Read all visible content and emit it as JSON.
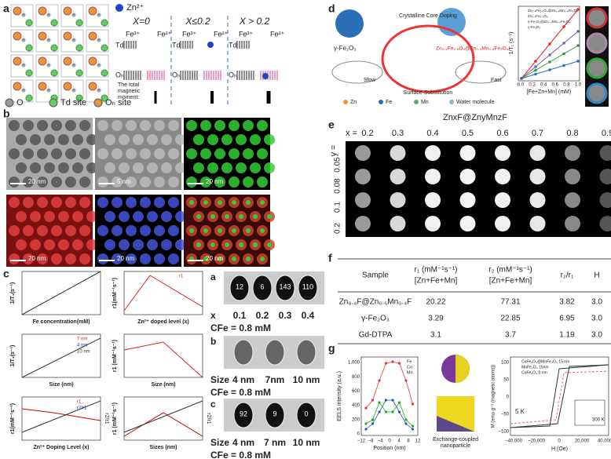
{
  "a": {
    "label": "a",
    "ion": "Zn²⁺",
    "cases": [
      "X=0",
      "X≤0.2",
      "X > 0.2"
    ],
    "fe3": "Fe³⁺",
    "fe2": "Fe²⁺",
    "td": "Td",
    "oh": "Oₕ",
    "legend": [
      "O",
      "Td site",
      "Oₕ site"
    ],
    "moment": [
      "The total",
      "magnetic",
      "moment:"
    ]
  },
  "b": {
    "label": "b",
    "scales": [
      "20 nm",
      "5 nm",
      "20 nm",
      "20 nm",
      "20 nm",
      "20 nm"
    ]
  },
  "c": {
    "label": "c",
    "plots": [
      {
        "x": "Fe concentration(mM)",
        "y": "1/T₁(s⁻¹)"
      },
      {
        "x": "Zn²⁺ doped level (x)",
        "y": "r1(mM⁻¹s⁻¹)",
        "legend": [
          "r1"
        ]
      },
      {
        "x": "Size (nm)",
        "y": "1/T₁(s⁻¹)",
        "legend": [
          "7 nm",
          "4 nm",
          "10 nm"
        ]
      },
      {
        "x": "Size (nm)",
        "y": "r1 (mM⁻¹s⁻¹)"
      },
      {
        "x": "Zn²⁺ Doping Level (x)",
        "y": "r1(mM⁻¹s⁻¹)",
        "y2": "r2/r1",
        "legend": [
          "r1",
          "r2/r1"
        ]
      },
      {
        "x": "Sizes (nm)",
        "y": "r1 (mM⁻¹s⁻¹)",
        "y2": "r2/r1"
      }
    ],
    "sub": [
      {
        "label": "a",
        "values": [
          12,
          6,
          143,
          110
        ],
        "axis": "x",
        "ticks": [
          "0.1",
          "0.2",
          "0.3",
          "0.4"
        ],
        "conc": "CFe = 0.8 mM"
      },
      {
        "label": "b",
        "values": [],
        "axis": "Size",
        "ticks": [
          "4 nm",
          "7nm",
          "10 nm"
        ],
        "conc": "CFe = 0.8 mM"
      },
      {
        "label": "c",
        "values": [
          92,
          9,
          0
        ],
        "axis": "Size",
        "ticks": [
          "4 nm",
          "7 nm",
          "10 nm"
        ],
        "conc": "CFe = 0.8 mM"
      }
    ]
  },
  "d": {
    "label": "d",
    "core": "γ-Fe₂O₃",
    "doping": "Crystalline Core Doping",
    "surface": "Surface Substitution",
    "slow": "Slow",
    "fast": "Fast",
    "product": "Zn₀.₄Fe₂.₆O₄@Zn₀.₄Mn₀.₆Fe₂O₄",
    "legend": [
      "Zn",
      "Fe",
      "Mn",
      "Water molecule"
    ],
    "plot": {
      "x": "[Fe+Zn+Mn] (mM)",
      "y": "1/T₁ (s⁻¹)",
      "series": [
        "Zn₀.₄Fe₂.₆O₄@Zn₀.₄Mn₀.₆Fe₂O₄",
        "Zn₀.₄Fe₂.₆O₄",
        "γ-Fe₂O₃@Zn₀.₄Mn₀.₆Fe₂O₄",
        "γ-Fe₂O₃"
      ],
      "xticks": [
        "0.0",
        "0.2",
        "0.4",
        "0.6",
        "0.8",
        "1.0"
      ]
    }
  },
  "e": {
    "label": "e",
    "title": "ZnxF@ZnyMnzF",
    "xlabel": "x =",
    "cols": [
      0.2,
      0.3,
      0.4,
      0.5,
      0.6,
      0.7,
      0.8,
      0.9
    ],
    "ylabel": "y =",
    "rows": [
      0.05,
      0.08,
      0.1,
      0.2
    ]
  },
  "f": {
    "label": "f",
    "header": [
      "Sample",
      "r₁ (mM⁻¹s⁻¹)",
      "r₂ (mM⁻¹s⁻¹)",
      "r₂/r₁",
      "H"
    ],
    "subheader": [
      "[Zn+Fe+Mn]",
      "[Zn+Fe+Mn]"
    ],
    "rows": [
      [
        "Zn₀.₄F@Zn₀.₆Mn₀.₄F",
        20.22,
        77.31,
        3.82,
        "3.0"
      ],
      [
        "γ-Fe₂O₃",
        3.29,
        22.85,
        6.95,
        "3.0"
      ],
      [
        "Gd-DTPA",
        3.1,
        3.7,
        1.19,
        "3.0"
      ]
    ]
  },
  "g": {
    "label": "g",
    "eels": {
      "y": "EELS intensity (a.u.)",
      "x": "Position (nm)",
      "legend": [
        "Fe",
        "Co",
        "Mn"
      ],
      "yticks": [
        "0",
        "200",
        "400",
        "600",
        "800",
        "1,000"
      ],
      "xticks": [
        "−12",
        "−8",
        "−4",
        "0",
        "4",
        "8",
        "12"
      ]
    },
    "mid": [
      "Exchange-coupled",
      "nanoparticle"
    ],
    "hyst": {
      "y": "M (emu g⁻¹ (magnetic atoms))",
      "x": "H (Oe)",
      "legend": [
        "CoFe₂O₄@MnFe₂O₄ 15 nm",
        "MnFe₂O₄ 15nm",
        "CoFe₂O₄ 9 nm"
      ],
      "temp": "5 K",
      "inset": "300 K",
      "xticks": [
        "−40,000",
        "−20,000",
        "0",
        "20,000",
        "40,000"
      ],
      "yticks": [
        "−100",
        "−50",
        "0",
        "50",
        "100"
      ]
    }
  }
}
